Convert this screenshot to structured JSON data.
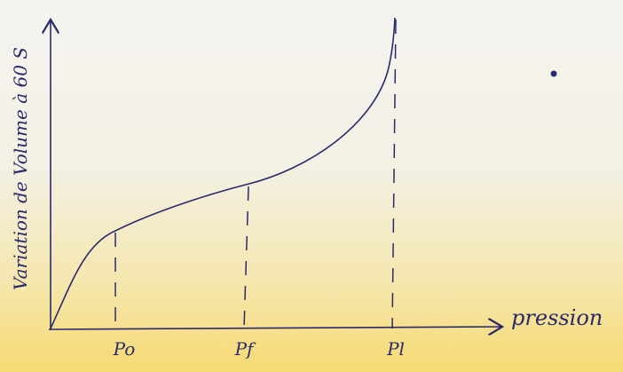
{
  "y_axis_label": "Variation de Volume à 60 S",
  "x_axis_label": "pression",
  "ticks": [
    "Po",
    "Pf",
    "Pl"
  ]
}
